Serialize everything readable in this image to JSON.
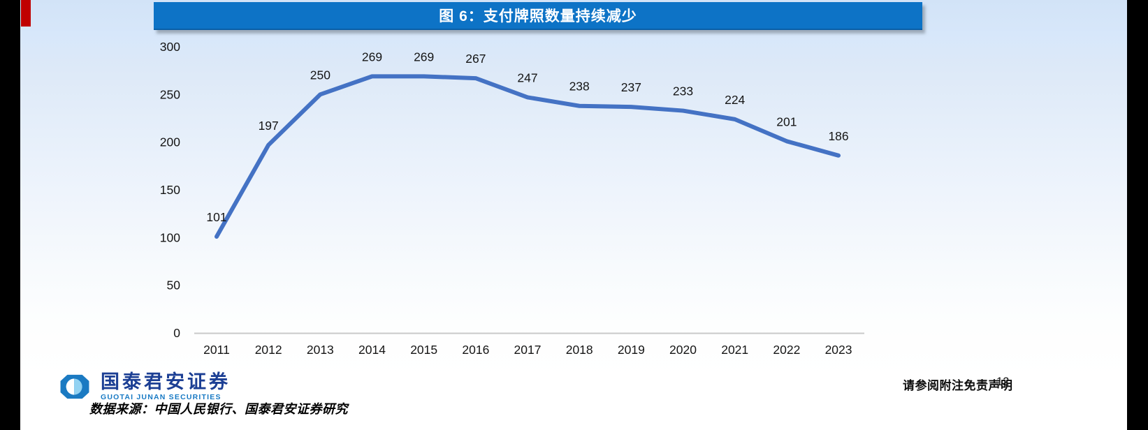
{
  "slide": {
    "disclaimer": "请参阅附注免责声明",
    "page_number": "12",
    "source": "数据来源：中国人民银行、国泰君安证券研究"
  },
  "logo": {
    "name_cn": "国泰君安证券",
    "name_en": "GUOTAI JUNAN SECURITIES"
  },
  "colors": {
    "title_bar_blue": "#0d73c6",
    "accent_red": "#c00000",
    "line_blue": "#4472c4",
    "logo_dark_blue": "#1c3f94",
    "logo_blue": "#1779c4",
    "logo_light_blue": "#93d2f2"
  },
  "chart_data": {
    "type": "line",
    "title": "图 6：支付牌照数量持续减少",
    "categories": [
      "2011",
      "2012",
      "2013",
      "2014",
      "2015",
      "2016",
      "2017",
      "2018",
      "2019",
      "2020",
      "2021",
      "2022",
      "2023"
    ],
    "values": [
      101,
      197,
      250,
      269,
      269,
      267,
      247,
      238,
      237,
      233,
      224,
      201,
      186
    ],
    "xlabel": "",
    "ylabel": "",
    "ylim": [
      0,
      300
    ],
    "yticks": [
      0,
      50,
      100,
      150,
      200,
      250,
      300
    ],
    "grid": false,
    "legend": false,
    "data_labels": true,
    "line_color": "#4472c4",
    "axis_color": "#c9c9c9",
    "label_color": "#151515"
  }
}
